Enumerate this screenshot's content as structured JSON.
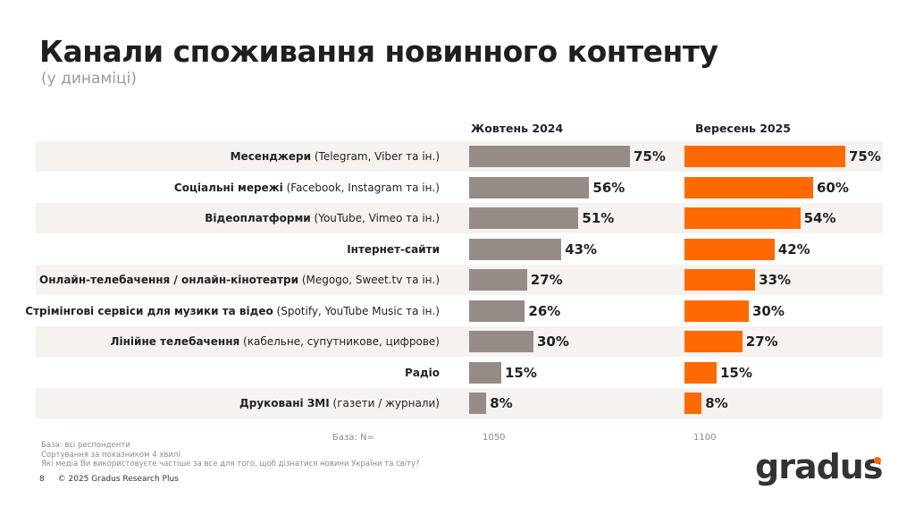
{
  "title": "Канали споживання новинного контенту",
  "subtitle": "(у динаміці)",
  "chart_data": {
    "type": "bar",
    "orientation": "horizontal",
    "title": "Канали споживання новинного контенту",
    "subtitle": "(у динаміці)",
    "xlim": [
      0,
      100
    ],
    "categories": [
      {
        "bold": "Месенджери",
        "note": "(Telegram, Viber та ін.)"
      },
      {
        "bold": "Соціальні мережі",
        "note": "(Facebook, Instagram та ін.)"
      },
      {
        "bold": "Відеоплатформи",
        "note": "(YouTube, Vimeo та ін.)"
      },
      {
        "bold": "Інтернет-сайти",
        "note": ""
      },
      {
        "bold": "Онлайн-телебачення / онлайн-кінотеатри",
        "note": "(Megogo, Sweet.tv та ін.)"
      },
      {
        "bold": "Стрімінгові сервіси для музики та відео",
        "note": "(Spotify, YouTube Music та ін.)"
      },
      {
        "bold": "Лінійне телебачення",
        "note": "(кабельне, супутникове, цифрове)"
      },
      {
        "bold": "Радіо",
        "note": ""
      },
      {
        "bold": "Друковані ЗМІ",
        "note": "(газети / журнали)"
      }
    ],
    "series": [
      {
        "name": "Жовтень 2024",
        "color": "#958b87",
        "values": [
          75,
          56,
          51,
          43,
          27,
          26,
          30,
          15,
          8
        ],
        "n": "1050"
      },
      {
        "name": "Вересень 2025",
        "color": "#ff6a00",
        "values": [
          75,
          60,
          54,
          42,
          33,
          30,
          27,
          15,
          8
        ],
        "n": "1100"
      }
    ],
    "value_suffix": "%",
    "base_label": "База: N="
  },
  "footnotes": [
    "База: всі респонденти",
    "Сортування за показником 4 хвилі",
    "Які медіа Ви використовуєте частіше за все для того, щоб дізнатися новини України та світу?"
  ],
  "page_number": "8",
  "copyright": "© 2025 Gradus Research Plus",
  "logo": "gradus"
}
